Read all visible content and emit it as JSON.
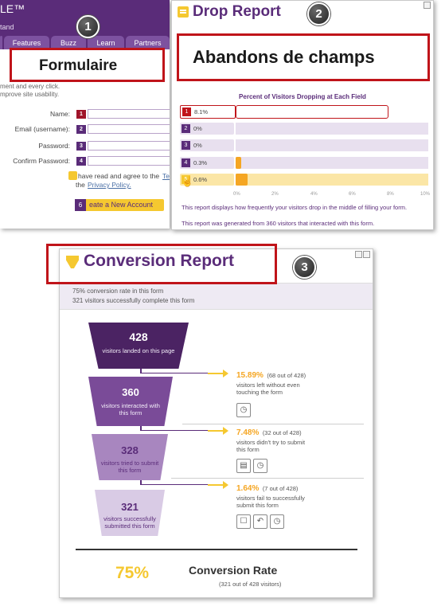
{
  "form_panel": {
    "logo_text": "LE™",
    "tagline": "tand",
    "tabs": [
      "Features",
      "Buzz",
      "Learn",
      "Partners"
    ],
    "intro_lines": [
      "ment and every click.",
      "mprove site usability."
    ],
    "fields": [
      {
        "label": "Name:",
        "num": "1"
      },
      {
        "label": "Email (username):",
        "num": "2"
      },
      {
        "label": "Password:",
        "num": "3"
      },
      {
        "label": "Confirm Password:",
        "num": "4"
      }
    ],
    "agree_text": "have read and agree to the",
    "agree_terms": "Te",
    "agree_prefix": "the",
    "privacy_link": "Privacy Policy.",
    "create_num": "6",
    "create_label": "eate a New Account"
  },
  "drop_report": {
    "title": "Drop Report",
    "chart_title": "Percent of Visitors Dropping at Each Field",
    "rows": [
      {
        "num": "1",
        "pct_label": "8.1%",
        "value": 8.1,
        "num_color": "#c0141a",
        "highlight": "red"
      },
      {
        "num": "2",
        "pct_label": "0%",
        "value": 0,
        "num_color": "#5a2c79",
        "highlight": "none"
      },
      {
        "num": "3",
        "pct_label": "0%",
        "value": 0,
        "num_color": "#5a2c79",
        "highlight": "none"
      },
      {
        "num": "4",
        "pct_label": "0.3%",
        "value": 0.3,
        "num_color": "#5a2c79",
        "highlight": "none"
      },
      {
        "num": "5",
        "pct_label": "0.6%",
        "value": 0.6,
        "num_color": "#f5c830",
        "highlight": "yellow"
      }
    ],
    "axis_ticks": [
      "0%",
      "2%",
      "4%",
      "6%",
      "8%",
      "10%"
    ],
    "note1": "This report displays how frequently your visitors drop in the middle of filling your form.",
    "note2": "This report was generated from 360 visitors that interacted with this form."
  },
  "conversion_report": {
    "title": "Conversion Report",
    "summary_rate": "75% conversion rate in this form",
    "summary_visitors": "321 visitors successfully complete this form",
    "funnel": [
      {
        "count": "428",
        "desc1": "visitors landed on this page",
        "desc2": ""
      },
      {
        "count": "360",
        "desc1": "visitors interacted with",
        "desc2": "this form"
      },
      {
        "count": "328",
        "desc1": "visitors tried to submit",
        "desc2": "this form"
      },
      {
        "count": "321",
        "desc1": "visitors successfully",
        "desc2": "submitted this form"
      }
    ],
    "drops": [
      {
        "pct": "15.89%",
        "of": "(68 out of 428)",
        "desc": [
          "visitors left without even",
          "touching the form"
        ]
      },
      {
        "pct": "7.48%",
        "of": "(32 out of 428)",
        "desc": [
          "visitors didn't try to submit",
          "this form"
        ]
      },
      {
        "pct": "1.64%",
        "of": "(7 out of 428)",
        "desc": [
          "visitors fail to successfully",
          "submit this form"
        ]
      }
    ],
    "rate_value": "75%",
    "rate_label": "Conversion Rate",
    "rate_sub": "(321 out of 428 visitors)"
  },
  "annotations": {
    "callout_1": "1",
    "callout_2": "2",
    "callout_3": "3",
    "label_1": "Formulaire",
    "label_2": "Abandons de champs"
  },
  "colors": {
    "brand_purple": "#5a2c79",
    "accent_yellow": "#f5c830",
    "callout_red": "#c0141a"
  }
}
